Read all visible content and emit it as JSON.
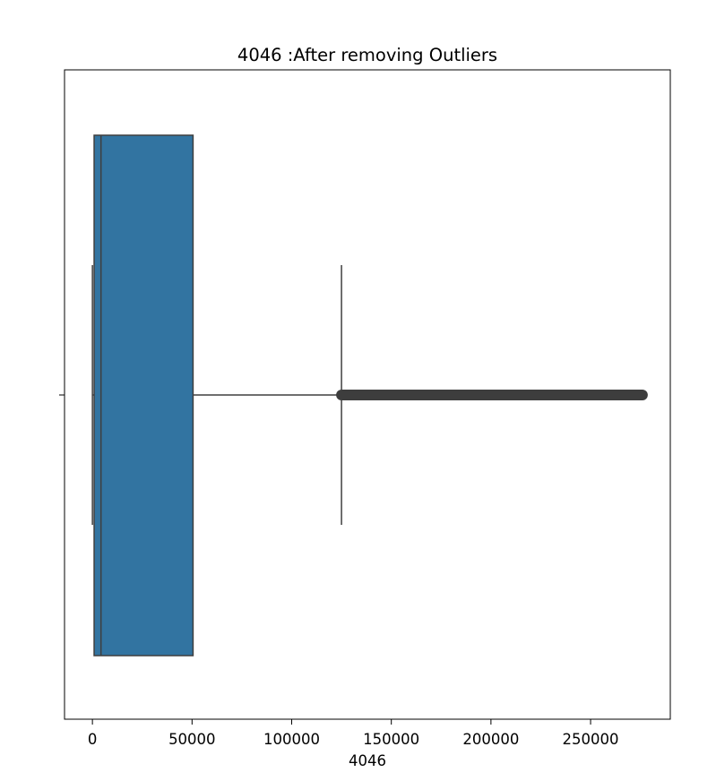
{
  "chart_data": {
    "type": "boxplot",
    "orientation": "horizontal",
    "title": "4046 :After removing Outliers",
    "xlabel": "4046",
    "ylabel": "",
    "xlim": [
      -14000,
      290000
    ],
    "xticks": [
      0,
      50000,
      100000,
      150000,
      200000,
      250000
    ],
    "xtick_labels": [
      "0",
      "50000",
      "100000",
      "150000",
      "200000",
      "250000"
    ],
    "box": {
      "whisker_low": 0,
      "q1": 850,
      "median": 4300,
      "q3": 50500,
      "whisker_high": 125000,
      "outliers_min": 125000,
      "outliers_max": 276000
    },
    "colors": {
      "box_fill": "#3274a1",
      "line": "#3f3f3f",
      "outlier": "#3d3d3d"
    },
    "grid": false
  }
}
